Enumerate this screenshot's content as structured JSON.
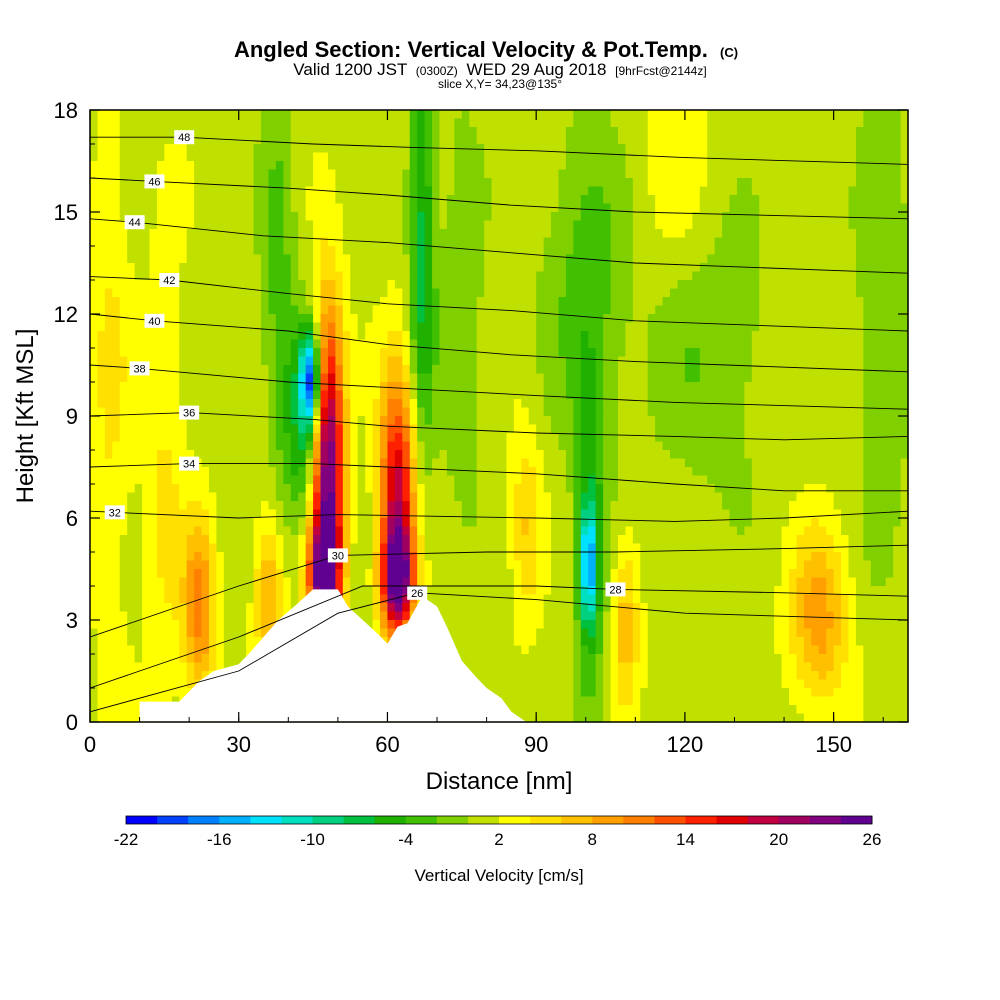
{
  "chart_data": {
    "type": "heatmap",
    "title": {
      "main": "Angled Section: Vertical Velocity & Pot.Temp.",
      "main_suffix": "(C)",
      "line2_a": "Valid 1200 JST",
      "line2_b": "(0300Z)",
      "line2_c": "WED 29 Aug 2018",
      "line2_d": "[9hrFcst@2144z]",
      "line3": "slice X,Y= 34,23@135°"
    },
    "xlabel": "Distance [nm]",
    "ylabel": "Height [Kft MSL]",
    "xlim": [
      0,
      165
    ],
    "ylim": [
      0,
      18
    ],
    "x_ticks": [
      0,
      30,
      60,
      90,
      120,
      150
    ],
    "y_ticks": [
      0,
      3,
      6,
      9,
      12,
      15,
      18
    ],
    "colorbar": {
      "label": "Vertical Velocity [cm/s]",
      "min": -22,
      "max": 26,
      "step": 2,
      "tick_labels": [
        -22,
        -16,
        -10,
        -4,
        2,
        8,
        14,
        20,
        26
      ],
      "colors": [
        "#0000ff",
        "#0040ff",
        "#0080ff",
        "#00b0ff",
        "#00e0ff",
        "#00e0c0",
        "#00d080",
        "#00c040",
        "#20b000",
        "#40c000",
        "#80d000",
        "#c0e000",
        "#ffff00",
        "#ffe000",
        "#ffc000",
        "#ffa000",
        "#ff8000",
        "#ff5000",
        "#ff2000",
        "#e00000",
        "#c00040",
        "#a00060",
        "#800080",
        "#600090"
      ]
    },
    "terrain": [
      [
        10,
        0.6
      ],
      [
        18,
        0.6
      ],
      [
        20,
        0.9
      ],
      [
        22,
        1.2
      ],
      [
        25,
        1.5
      ],
      [
        30,
        1.7
      ],
      [
        32,
        2.0
      ],
      [
        35,
        2.5
      ],
      [
        38,
        3.0
      ],
      [
        42,
        3.5
      ],
      [
        45,
        3.9
      ],
      [
        50,
        3.9
      ],
      [
        52,
        3.4
      ],
      [
        55,
        3.0
      ],
      [
        58,
        2.6
      ],
      [
        60,
        2.3
      ],
      [
        62,
        2.8
      ],
      [
        64,
        2.9
      ],
      [
        67,
        3.7
      ],
      [
        70,
        3.4
      ],
      [
        72,
        2.8
      ],
      [
        75,
        1.8
      ],
      [
        78,
        1.3
      ],
      [
        80,
        1.0
      ],
      [
        83,
        0.7
      ],
      [
        85,
        0.3
      ],
      [
        88,
        0.0
      ]
    ],
    "theta_contours": [
      {
        "label": "26",
        "label_x": 66,
        "points": [
          [
            0,
            0.3
          ],
          [
            30,
            1.5
          ],
          [
            50,
            3.2
          ],
          [
            66,
            3.8
          ],
          [
            90,
            3.6
          ],
          [
            120,
            3.2
          ],
          [
            165,
            3.0
          ]
        ]
      },
      {
        "label": "28",
        "label_x": 106,
        "points": [
          [
            0,
            1.0
          ],
          [
            30,
            2.5
          ],
          [
            55,
            4.0
          ],
          [
            90,
            4.0
          ],
          [
            106,
            3.9
          ],
          [
            140,
            3.8
          ],
          [
            165,
            3.7
          ]
        ]
      },
      {
        "label": "30",
        "label_x": 50,
        "points": [
          [
            0,
            2.5
          ],
          [
            30,
            4.0
          ],
          [
            50,
            4.9
          ],
          [
            80,
            5.0
          ],
          [
            106,
            5.0
          ],
          [
            140,
            5.1
          ],
          [
            165,
            5.2
          ]
        ]
      },
      {
        "label": "32",
        "label_x": 5,
        "points": [
          [
            0,
            6.2
          ],
          [
            30,
            6.0
          ],
          [
            50,
            6.1
          ],
          [
            90,
            6.0
          ],
          [
            118,
            5.9
          ],
          [
            140,
            6.0
          ],
          [
            165,
            6.2
          ]
        ]
      },
      {
        "label": "34",
        "label_x": 20,
        "points": [
          [
            0,
            7.5
          ],
          [
            20,
            7.6
          ],
          [
            45,
            7.6
          ],
          [
            60,
            7.5
          ],
          [
            90,
            7.3
          ],
          [
            118,
            7.0
          ],
          [
            140,
            6.8
          ],
          [
            165,
            6.8
          ]
        ]
      },
      {
        "label": "36",
        "label_x": 20,
        "points": [
          [
            0,
            9.0
          ],
          [
            20,
            9.1
          ],
          [
            45,
            8.9
          ],
          [
            60,
            8.7
          ],
          [
            90,
            8.5
          ],
          [
            118,
            8.4
          ],
          [
            140,
            8.3
          ],
          [
            165,
            8.4
          ]
        ]
      },
      {
        "label": "38",
        "label_x": 10,
        "points": [
          [
            0,
            10.5
          ],
          [
            10,
            10.4
          ],
          [
            40,
            10.0
          ],
          [
            65,
            9.8
          ],
          [
            90,
            9.6
          ],
          [
            118,
            9.4
          ],
          [
            165,
            9.2
          ]
        ]
      },
      {
        "label": "40",
        "label_x": 13,
        "points": [
          [
            0,
            12.0
          ],
          [
            13,
            11.8
          ],
          [
            40,
            11.5
          ],
          [
            60,
            11.1
          ],
          [
            85,
            10.8
          ],
          [
            110,
            10.6
          ],
          [
            165,
            10.3
          ]
        ]
      },
      {
        "label": "42",
        "label_x": 16,
        "points": [
          [
            0,
            13.1
          ],
          [
            16,
            13.0
          ],
          [
            40,
            12.6
          ],
          [
            60,
            12.3
          ],
          [
            85,
            12.1
          ],
          [
            110,
            11.8
          ],
          [
            165,
            11.5
          ]
        ]
      },
      {
        "label": "44",
        "label_x": 9,
        "points": [
          [
            0,
            14.8
          ],
          [
            9,
            14.7
          ],
          [
            35,
            14.3
          ],
          [
            60,
            14.1
          ],
          [
            85,
            13.8
          ],
          [
            110,
            13.5
          ],
          [
            165,
            13.2
          ]
        ]
      },
      {
        "label": "46",
        "label_x": 13,
        "points": [
          [
            0,
            16.0
          ],
          [
            13,
            15.9
          ],
          [
            40,
            15.7
          ],
          [
            60,
            15.5
          ],
          [
            85,
            15.2
          ],
          [
            110,
            15.0
          ],
          [
            165,
            14.8
          ]
        ]
      },
      {
        "label": "48",
        "label_x": 19,
        "points": [
          [
            0,
            17.2
          ],
          [
            19,
            17.2
          ],
          [
            45,
            17.0
          ],
          [
            65,
            16.9
          ],
          [
            90,
            16.8
          ],
          [
            120,
            16.6
          ],
          [
            165,
            16.4
          ]
        ]
      }
    ],
    "velocity_features": [
      {
        "x": 48,
        "y": 7.5,
        "sx": 2.2,
        "sy": 3.2,
        "w": 24
      },
      {
        "x": 47,
        "y": 4.2,
        "sx": 2.2,
        "sy": 1.2,
        "w": 18
      },
      {
        "x": 62,
        "y": 6.5,
        "sx": 2.5,
        "sy": 2.6,
        "w": 18
      },
      {
        "x": 62,
        "y": 4.2,
        "sx": 2.2,
        "sy": 1.0,
        "w": 18
      },
      {
        "x": 44.5,
        "y": 10.0,
        "sx": 1.4,
        "sy": 1.0,
        "w": -18
      },
      {
        "x": 43,
        "y": 8.5,
        "sx": 3.0,
        "sy": 2.2,
        "w": -7
      },
      {
        "x": 67,
        "y": 14.0,
        "sx": 1.8,
        "sy": 4.5,
        "w": -8
      },
      {
        "x": 100.5,
        "y": 4.6,
        "sx": 1.2,
        "sy": 1.2,
        "w": -12
      },
      {
        "x": 101,
        "y": 5.0,
        "sx": 2.2,
        "sy": 4.0,
        "w": -6
      },
      {
        "x": 100,
        "y": 13.0,
        "sx": 6.0,
        "sy": 3.5,
        "w": -4
      },
      {
        "x": 38,
        "y": 14.0,
        "sx": 2.5,
        "sy": 4.0,
        "w": -4
      },
      {
        "x": 22,
        "y": 3.3,
        "sx": 2.2,
        "sy": 1.8,
        "w": 10
      },
      {
        "x": 36,
        "y": 3.8,
        "sx": 2.0,
        "sy": 1.6,
        "w": 7
      },
      {
        "x": 88,
        "y": 5.8,
        "sx": 2.2,
        "sy": 2.0,
        "w": 5
      },
      {
        "x": 108,
        "y": 3.0,
        "sx": 2.0,
        "sy": 1.8,
        "w": 6
      },
      {
        "x": 147,
        "y": 3.0,
        "sx": 4.0,
        "sy": 1.8,
        "w": 8
      },
      {
        "x": 125,
        "y": 11.0,
        "sx": 9.0,
        "sy": 3.0,
        "w": -3
      },
      {
        "x": 75,
        "y": 12.0,
        "sx": 3.0,
        "sy": 4.5,
        "w": -3
      },
      {
        "x": 160,
        "y": 12.0,
        "sx": 4.0,
        "sy": 5.0,
        "w": -3
      },
      {
        "x": 4,
        "y": 10.0,
        "sx": 3.0,
        "sy": 6.0,
        "w": 3
      },
      {
        "x": 15,
        "y": 7.0,
        "sx": 3.0,
        "sy": 5.0,
        "w": 3
      },
      {
        "x": 118,
        "y": 16.0,
        "sx": 6.0,
        "sy": 2.5,
        "w": 2
      }
    ]
  }
}
